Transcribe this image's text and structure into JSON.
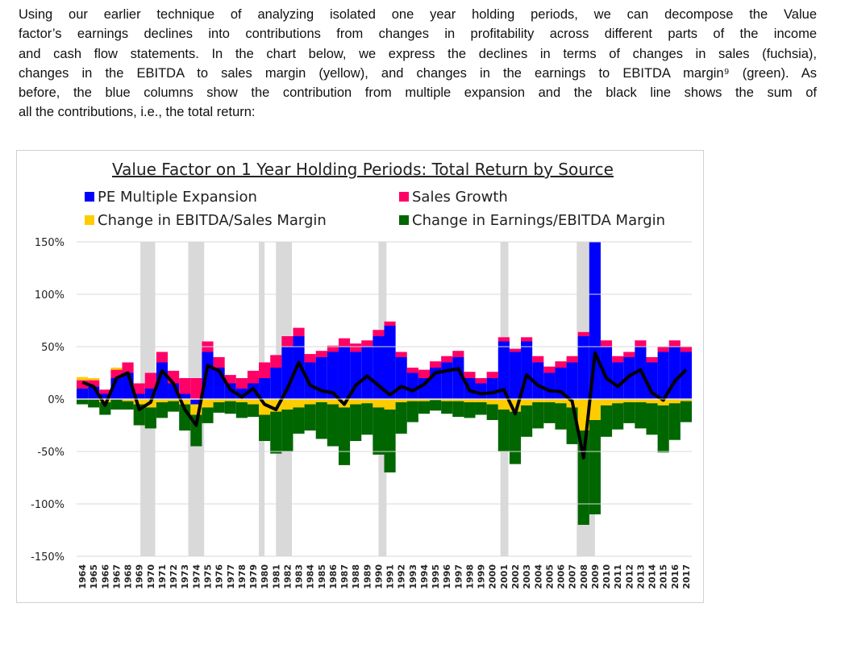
{
  "paragraph_lines": [
    "Using our earlier technique of analyzing isolated one year holding periods, we can decompose the Value",
    "factor’s earnings declines into contributions from changes in profitability across different parts of the income",
    "and cash flow statements. In the chart below, we express the declines in terms of changes in sales (fuchsia),",
    "changes in the EBITDA to sales margin (yellow), and changes in the earnings to EBITDA margin⁹ (green). As",
    "before, the blue columns show the contribution from multiple expansion and the black line shows the sum of",
    "all the contributions, i.e., the total return:"
  ],
  "chart_data": {
    "type": "stacked_bar_line",
    "title": "Value Factor on 1 Year Holding Periods: Total Return by Source",
    "categories": [
      "1964",
      "1965",
      "1966",
      "1967",
      "1968",
      "1969",
      "1970",
      "1971",
      "1972",
      "1973",
      "1974",
      "1975",
      "1976",
      "1977",
      "1978",
      "1979",
      "1980",
      "1981",
      "1982",
      "1983",
      "1984",
      "1985",
      "1986",
      "1987",
      "1988",
      "1989",
      "1990",
      "1991",
      "1992",
      "1993",
      "1994",
      "1995",
      "1996",
      "1997",
      "1998",
      "1999",
      "2000",
      "2001",
      "2002",
      "2003",
      "2004",
      "2005",
      "2006",
      "2007",
      "2008",
      "2009",
      "2010",
      "2011",
      "2012",
      "2013",
      "2014",
      "2015",
      "2016",
      "2017"
    ],
    "series": [
      {
        "name": "PE Multiple Expansion",
        "color": "#0000ff",
        "values": [
          10,
          12,
          5,
          20,
          25,
          5,
          10,
          35,
          15,
          5,
          -5,
          45,
          30,
          15,
          10,
          15,
          20,
          30,
          50,
          60,
          35,
          40,
          45,
          50,
          45,
          50,
          60,
          70,
          40,
          25,
          20,
          30,
          35,
          40,
          20,
          15,
          20,
          55,
          45,
          55,
          35,
          25,
          30,
          35,
          60,
          150,
          50,
          35,
          40,
          50,
          35,
          45,
          50,
          45
        ]
      },
      {
        "name": "Sales Growth",
        "color": "#ff0066",
        "values": [
          8,
          6,
          4,
          8,
          10,
          10,
          15,
          10,
          12,
          15,
          20,
          10,
          10,
          8,
          10,
          12,
          15,
          12,
          10,
          8,
          8,
          6,
          6,
          8,
          8,
          6,
          6,
          4,
          5,
          5,
          8,
          6,
          6,
          6,
          6,
          5,
          6,
          4,
          3,
          4,
          6,
          6,
          6,
          6,
          4,
          4,
          6,
          6,
          5,
          6,
          5,
          5,
          6,
          5
        ]
      },
      {
        "name": "Change in EBITDA/Sales Margin",
        "color": "#ffcc00",
        "values": [
          3,
          2,
          -3,
          2,
          -2,
          -5,
          -8,
          -3,
          -2,
          -5,
          -10,
          -8,
          -3,
          -2,
          -3,
          -5,
          -15,
          -12,
          -10,
          -8,
          -5,
          -3,
          -5,
          -8,
          -5,
          -4,
          -8,
          -10,
          -3,
          -2,
          -2,
          -1,
          -2,
          -2,
          -3,
          -3,
          -5,
          -10,
          -12,
          -6,
          -3,
          -3,
          -4,
          -8,
          -30,
          -20,
          -6,
          -4,
          -3,
          -3,
          -4,
          -6,
          -4,
          -2
        ]
      },
      {
        "name": "Change in Earnings/EBITDA Margin",
        "color": "#006600",
        "values": [
          -5,
          -8,
          -12,
          -10,
          -8,
          -20,
          -20,
          -15,
          -10,
          -25,
          -30,
          -15,
          -10,
          -12,
          -15,
          -12,
          -25,
          -40,
          -40,
          -25,
          -25,
          -35,
          -40,
          -55,
          -35,
          -30,
          -45,
          -60,
          -30,
          -20,
          -12,
          -10,
          -12,
          -15,
          -15,
          -12,
          -15,
          -40,
          -50,
          -30,
          -25,
          -20,
          -25,
          -35,
          -90,
          -90,
          -30,
          -25,
          -20,
          -25,
          -30,
          -45,
          -35,
          -20
        ]
      }
    ],
    "line": {
      "color": "#000000",
      "values": [
        16,
        12,
        -6,
        20,
        25,
        -10,
        -3,
        27,
        15,
        -10,
        -25,
        32,
        27,
        9,
        2,
        10,
        -5,
        -10,
        10,
        35,
        13,
        8,
        6,
        -5,
        13,
        22,
        13,
        4,
        12,
        8,
        14,
        25,
        27,
        29,
        8,
        5,
        6,
        9,
        -14,
        23,
        13,
        8,
        7,
        -2,
        -56,
        44,
        20,
        12,
        22,
        28,
        6,
        -1,
        17,
        28
      ]
    },
    "shaded": [
      [
        1969.6,
        1970.9
      ],
      [
        1973.8,
        1975.2
      ],
      [
        1980,
        1980.5
      ],
      [
        1981.5,
        1982.9
      ],
      [
        1990.5,
        1991.2
      ],
      [
        2001.2,
        2001.9
      ],
      [
        2007.9,
        2009.5
      ]
    ],
    "ylim": [
      -150,
      150
    ],
    "yticks": [
      {
        "value": -150,
        "label": "-150%"
      },
      {
        "value": -100,
        "label": "-100%"
      },
      {
        "value": -50,
        "label": "-50%"
      },
      {
        "value": 0,
        "label": "0%"
      },
      {
        "value": 50,
        "label": "50%"
      },
      {
        "value": 100,
        "label": "100%"
      },
      {
        "value": 150,
        "label": "150%"
      }
    ],
    "grid": true
  }
}
